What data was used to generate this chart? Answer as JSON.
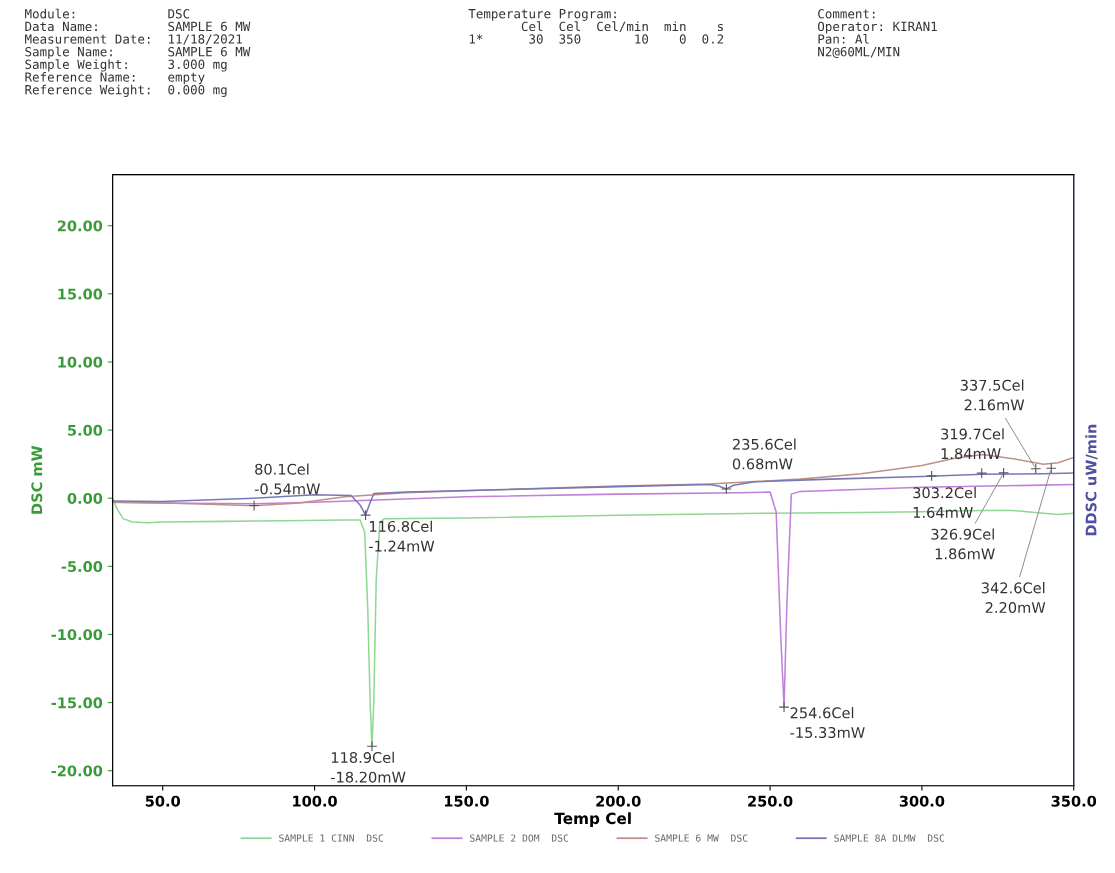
{
  "chart_data": {
    "type": "line",
    "xlabel": "Temp Cel",
    "ylabel": "DSC mW",
    "y2label": "DDSC uW/min",
    "xlim": [
      33.5,
      350
    ],
    "ylim": [
      -21.1,
      23.75
    ],
    "xticks": [
      {
        "value": 50,
        "label": "50.0"
      },
      {
        "value": 100,
        "label": "100.0"
      },
      {
        "value": 150,
        "label": "150.0"
      },
      {
        "value": 200,
        "label": "200.0"
      },
      {
        "value": 250,
        "label": "250.0"
      },
      {
        "value": 300,
        "label": "300.0"
      },
      {
        "value": 350,
        "label": "350.0"
      }
    ],
    "yticks": [
      {
        "value": -20,
        "label": "-20.00"
      },
      {
        "value": -15,
        "label": "-15.00"
      },
      {
        "value": -10,
        "label": "-10.00"
      },
      {
        "value": -5,
        "label": "-5.00"
      },
      {
        "value": 0,
        "label": "0.00"
      },
      {
        "value": 5,
        "label": "5.00"
      },
      {
        "value": 10,
        "label": "10.00"
      },
      {
        "value": 15,
        "label": "15.00"
      },
      {
        "value": 20,
        "label": "20.00"
      }
    ],
    "grid": false,
    "legend": "bottom",
    "marker": "none",
    "line_style": "solid",
    "series": [
      {
        "name": "SAMPLE 1 CINN  DSC",
        "color": "#90d890",
        "x": [
          33.5,
          35,
          37,
          40,
          45,
          50,
          70,
          90,
          110,
          115,
          116.5,
          117.5,
          118.3,
          118.9,
          119.5,
          120.3,
          121.5,
          123,
          150,
          200,
          250,
          280,
          300,
          320,
          330,
          340,
          345,
          350
        ],
        "values": [
          0,
          -0.8,
          -1.5,
          -1.75,
          -1.8,
          -1.75,
          -1.7,
          -1.65,
          -1.6,
          -1.6,
          -2.5,
          -8,
          -15,
          -18.2,
          -15,
          -6,
          -1.8,
          -1.5,
          -1.45,
          -1.25,
          -1.1,
          -1.05,
          -1.0,
          -0.9,
          -0.9,
          -1.1,
          -1.2,
          -1.1
        ]
      },
      {
        "name": "SAMPLE 2 DOM  DSC",
        "color": "#c080d8",
        "x": [
          33.5,
          50,
          80,
          100,
          150,
          200,
          240,
          250,
          252,
          253.5,
          254.6,
          255.5,
          257,
          260,
          300,
          350
        ],
        "values": [
          -0.3,
          -0.35,
          -0.4,
          -0.3,
          0.1,
          0.3,
          0.4,
          0.45,
          -1,
          -10,
          -15.33,
          -8,
          0.3,
          0.5,
          0.8,
          1.0
        ]
      },
      {
        "name": "SAMPLE 6 MW  DSC",
        "color": "#c09088",
        "x": [
          33.5,
          50,
          65,
          80,
          95,
          110,
          130,
          170,
          200,
          230,
          260,
          280,
          300,
          310,
          320,
          330,
          340,
          345,
          350
        ],
        "values": [
          -0.3,
          -0.35,
          -0.45,
          -0.55,
          -0.35,
          0.1,
          0.4,
          0.7,
          0.9,
          1.05,
          1.4,
          1.8,
          2.4,
          2.9,
          3.2,
          2.9,
          2.5,
          2.6,
          3.0
        ]
      },
      {
        "name": "SAMPLE 8A DLMW  DSC",
        "color": "#7878b8",
        "x": [
          33.5,
          50,
          80,
          100,
          112,
          115,
          116.8,
          118,
          119.5,
          130,
          200,
          230,
          233,
          235.6,
          238,
          245,
          270,
          300,
          320,
          340,
          350
        ],
        "values": [
          -0.2,
          -0.25,
          0,
          0.25,
          0.2,
          -0.5,
          -1.24,
          -0.5,
          0.35,
          0.45,
          0.85,
          1.0,
          0.9,
          0.68,
          0.95,
          1.2,
          1.4,
          1.6,
          1.75,
          1.8,
          1.85
        ]
      }
    ],
    "annotations": [
      "Module:            DSC\nData Name:         SAMPLE 6 MW\nMeasurement Date:  11/18/2021\nSample Name:       SAMPLE 6 MW\nSample Weight:     3.000 mg\nReference Name:    empty\nReference Weight:  0.000 mg",
      "Temperature Program:\n       Cel  Cel  Cel/min  min    s\n1*      30  350       10    0  0.2",
      "Comment:\nOperator: KIRAN1\nPan: Al\nN2@60ML/MIN",
      {
        "text": "80.1Cel\n-0.54mW",
        "x": 80.1,
        "y": -0.54
      },
      {
        "text": "116.8Cel\n-1.24mW",
        "x": 116.8,
        "y": -1.24
      },
      {
        "text": "118.9Cel\n-18.20mW",
        "x": 118.9,
        "y": -18.2
      },
      {
        "text": "235.6Cel\n0.68mW",
        "x": 235.6,
        "y": 0.68
      },
      {
        "text": "254.6Cel\n-15.33mW",
        "x": 254.6,
        "y": -15.33
      },
      {
        "text": "303.2Cel\n1.64mW",
        "x": 303.2,
        "y": 1.64
      },
      {
        "text": "319.7Cel\n1.84mW",
        "x": 319.7,
        "y": 1.84
      },
      {
        "text": "337.5Cel\n2.16mW",
        "x": 337.5,
        "y": 2.16
      },
      {
        "text": "326.9Cel\n1.86mW",
        "x": 326.9,
        "y": 1.86
      },
      {
        "text": "342.6Cel\n2.20mW",
        "x": 342.6,
        "y": 2.2
      }
    ]
  }
}
